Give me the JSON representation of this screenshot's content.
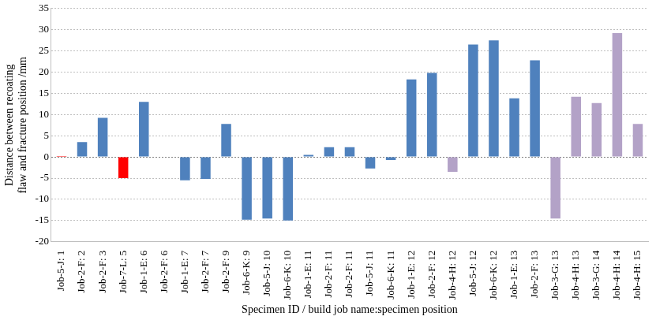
{
  "chart_data": {
    "type": "bar",
    "x_label": "Specimen ID / build job name:specimen position",
    "y_label": [
      "Distance between recoating",
      "flaw and fracture position /mm"
    ],
    "categories": [
      "Job-5-J: 1",
      "Job-2-F: 2",
      "Job-2-F: 3",
      "Job-7-L: 5",
      "Job-1-E: 6",
      "Job-2-F: 6",
      "Job-1-E: 7",
      "Job-2-F: 7",
      "Job-2-F: 9",
      "Job-6-K: 9",
      "Job-5-J: 10",
      "Job-6-K: 10",
      "Job-1-E: 11",
      "Job-2-F: 11",
      "Job-2-F: 11",
      "Job-5-J: 11",
      "Job-6-K: 11",
      "Job-1-E: 12",
      "Job-2-F: 12",
      "Job-4-H: 12",
      "Job-5-J: 12",
      "Job-6-K: 12",
      "Job-1-E: 13",
      "Job-2-F: 13",
      "Job-3-G: 13",
      "Job-4-H: 13",
      "Job-3-G: 14",
      "Job-4-H: 14",
      "Job-4-H: 15"
    ],
    "values": [
      0.2,
      3.5,
      9.2,
      -5,
      13,
      0,
      -5.5,
      -5.2,
      7.8,
      -14.8,
      -14.5,
      -15,
      0.5,
      2.3,
      2.3,
      -2.7,
      -0.7,
      18.3,
      19.8,
      -3.5,
      26.5,
      27.5,
      13.8,
      22.8,
      -14.5,
      14.2,
      12.7,
      29.2,
      7.8
    ],
    "colors": [
      "#ff0000",
      "#4f81bd",
      "#4f81bd",
      "#ff0000",
      "#4f81bd",
      "#4f81bd",
      "#4f81bd",
      "#4f81bd",
      "#4f81bd",
      "#4f81bd",
      "#4f81bd",
      "#4f81bd",
      "#4f81bd",
      "#4f81bd",
      "#4f81bd",
      "#4f81bd",
      "#4f81bd",
      "#4f81bd",
      "#4f81bd",
      "#b3a2c7",
      "#4f81bd",
      "#4f81bd",
      "#4f81bd",
      "#4f81bd",
      "#b3a2c7",
      "#b3a2c7",
      "#b3a2c7",
      "#b3a2c7",
      "#b3a2c7"
    ],
    "ylim": [
      -20,
      35
    ],
    "yticks": [
      -20,
      -15,
      -10,
      -5,
      0,
      5,
      10,
      15,
      20,
      25,
      30,
      35
    ],
    "grid": true
  }
}
